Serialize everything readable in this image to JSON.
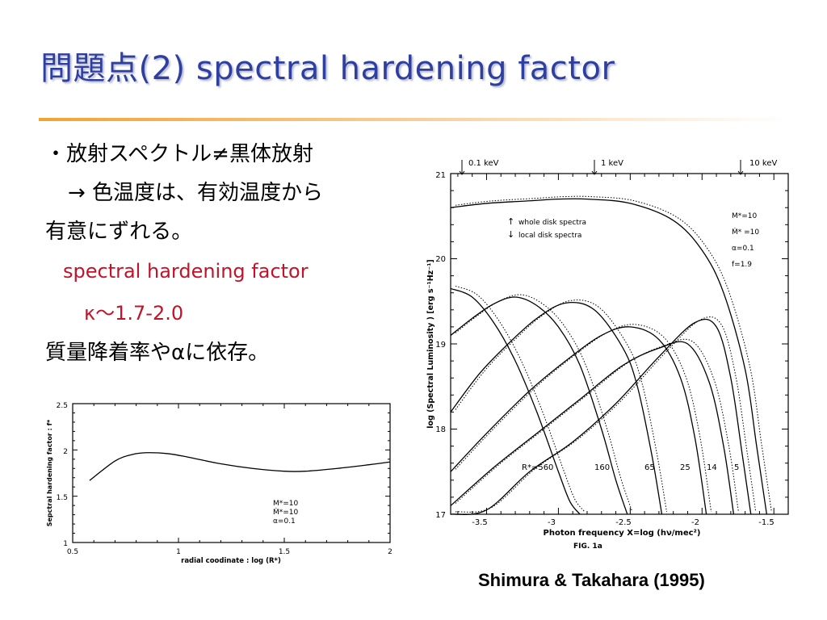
{
  "slide": {
    "title": "問題点(2) spectral hardening factor",
    "bullets": {
      "line1": "・放射スペクトル≠黒体放射",
      "line2": "→ 色温度は、有効温度から",
      "line3": "有意にずれる。",
      "line4": "spectral hardening factor",
      "line5": "κ〜1.7-2.0",
      "line6": "質量降着率やαに依存。"
    },
    "credit": "Shimura & Takahara (1995)"
  },
  "chart_data": [
    {
      "type": "line",
      "xlabel": "radial coodinate : log (R*)",
      "ylabel": "Sepctral hardening factor : f*",
      "xlim": [
        0.5,
        2
      ],
      "ylim": [
        1,
        2.5
      ],
      "x_ticks": [
        "0.5",
        "1",
        "1.5",
        "2"
      ],
      "y_ticks": [
        "1",
        "1.5",
        "2",
        "2.5"
      ],
      "params": [
        "M*=10",
        "Ṁ*=10",
        "α=0.1"
      ],
      "series": [
        {
          "x": [
            0.58,
            0.7,
            0.78,
            0.85,
            0.95,
            1.05,
            1.2,
            1.35,
            1.5,
            1.6,
            1.75,
            1.9,
            2.0
          ],
          "y": [
            1.67,
            1.88,
            1.95,
            1.97,
            1.96,
            1.92,
            1.85,
            1.8,
            1.77,
            1.77,
            1.8,
            1.84,
            1.87
          ]
        }
      ]
    },
    {
      "type": "line",
      "xlabel": "Photon frequency  X=log (hν/mec²)",
      "ylabel": "log (Spectral Luminosity ) [erg s⁻¹Hz⁻¹]",
      "caption": "FIG. 1a",
      "xlim": [
        -3.75,
        -1.4
      ],
      "ylim": [
        17,
        21
      ],
      "x_ticks": [
        "-3.5",
        "-3",
        "-2.5",
        "-2",
        "-1.5"
      ],
      "y_ticks": [
        "17",
        "18",
        "19",
        "20",
        "21"
      ],
      "top_markers": [
        "0.1 keV",
        "1 keV",
        "10 keV"
      ],
      "legend": [
        "whole disk spectra",
        "local disk spectra"
      ],
      "params": [
        "M*=10",
        "Ṁ* =10",
        "α=0.1",
        "f=1.9"
      ],
      "radius_labels": [
        "R*=560",
        "160",
        "65",
        "25",
        "14",
        "5"
      ],
      "series": [
        {
          "name": "whole",
          "x": [
            -3.75,
            -3.5,
            -3.2,
            -3.0,
            -2.8,
            -2.5,
            -2.2,
            -2.0,
            -1.85,
            -1.7,
            -1.62,
            -1.55
          ],
          "y": [
            20.6,
            20.65,
            20.68,
            20.7,
            20.7,
            20.65,
            20.45,
            20.1,
            19.6,
            18.7,
            17.8,
            17.0
          ]
        },
        {
          "name": "R*=560",
          "x": [
            -3.75,
            -3.6,
            -3.45,
            -3.3,
            -3.15,
            -3.0,
            -2.92,
            -2.85
          ],
          "y": [
            19.65,
            19.55,
            19.25,
            18.8,
            18.2,
            17.5,
            17.15,
            17.0
          ]
        },
        {
          "name": "160",
          "x": [
            -3.75,
            -3.6,
            -3.45,
            -3.3,
            -3.15,
            -3.0,
            -2.85,
            -2.7,
            -2.6,
            -2.52
          ],
          "y": [
            19.1,
            19.3,
            19.47,
            19.55,
            19.45,
            19.2,
            18.75,
            18.0,
            17.4,
            17.0
          ]
        },
        {
          "name": "65",
          "x": [
            -3.75,
            -3.55,
            -3.35,
            -3.15,
            -2.95,
            -2.75,
            -2.55,
            -2.45,
            -2.35,
            -2.28
          ],
          "y": [
            18.2,
            18.65,
            19.0,
            19.3,
            19.48,
            19.4,
            18.95,
            18.5,
            17.7,
            17.0
          ]
        },
        {
          "name": "25",
          "x": [
            -3.75,
            -3.5,
            -3.2,
            -2.95,
            -2.7,
            -2.5,
            -2.3,
            -2.15,
            -2.05,
            -1.97
          ],
          "y": [
            17.5,
            17.95,
            18.45,
            18.8,
            19.1,
            19.2,
            19.05,
            18.6,
            17.9,
            17.0
          ]
        },
        {
          "name": "14",
          "x": [
            -3.75,
            -3.45,
            -3.15,
            -2.85,
            -2.55,
            -2.3,
            -2.1,
            -1.95,
            -1.85,
            -1.78
          ],
          "y": [
            17.1,
            17.55,
            17.95,
            18.35,
            18.75,
            18.95,
            19.0,
            18.55,
            17.8,
            17.0
          ]
        },
        {
          "name": "5",
          "x": [
            -3.75,
            -3.5,
            -3.2,
            -2.9,
            -2.6,
            -2.3,
            -2.05,
            -1.9,
            -1.8,
            -1.72,
            -1.66
          ],
          "y": [
            17.0,
            17.05,
            17.5,
            17.85,
            18.3,
            18.85,
            19.25,
            19.2,
            18.6,
            17.7,
            17.0
          ]
        }
      ]
    }
  ],
  "styles": {
    "title_color": "#2e3fa0",
    "accent_red": "#c0142a",
    "rule_orange": "#f2a330"
  }
}
